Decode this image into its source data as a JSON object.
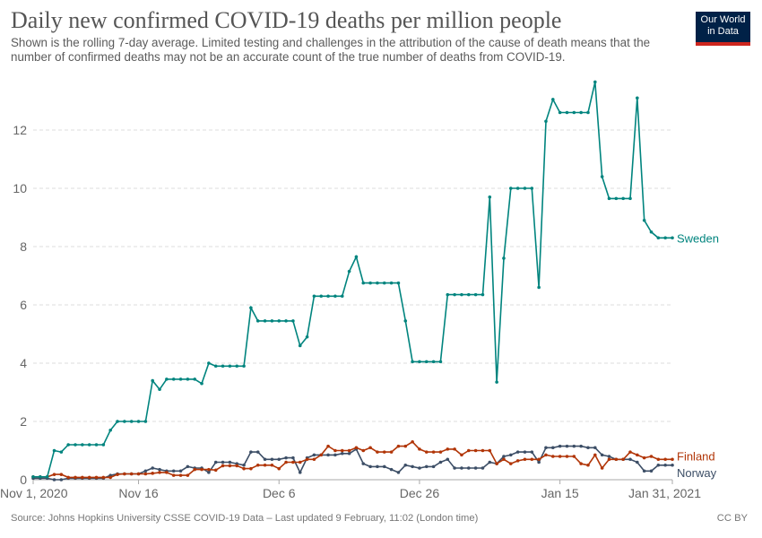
{
  "header": {
    "title": "Daily new confirmed COVID-19 deaths per million people",
    "subtitle": "Shown is the rolling 7-day average. Limited testing and challenges in the attribution of the cause of death means that the number of confirmed deaths may not be an accurate count of the true number of deaths from COVID-19.",
    "logo": "Our World in Data"
  },
  "footer": {
    "source": "Source: Johns Hopkins University CSSE COVID-19 Data – Last updated 9 February, 11:02 (London time)",
    "license": "CC BY"
  },
  "chart_data": {
    "type": "line",
    "title": "Daily new confirmed COVID-19 deaths per million people",
    "x_start": "2020-11-01",
    "x_end": "2021-01-31",
    "x_step": "1 day",
    "ylim": [
      0,
      13.9
    ],
    "grid": true,
    "y_ticks": [
      0,
      2,
      4,
      6,
      8,
      10,
      12
    ],
    "x_ticks": [
      {
        "label": "Nov 1, 2020",
        "date": "2020-11-01"
      },
      {
        "label": "Nov 16",
        "date": "2020-11-16"
      },
      {
        "label": "Dec 6",
        "date": "2020-12-06"
      },
      {
        "label": "Dec 26",
        "date": "2020-12-26"
      },
      {
        "label": "Jan 15",
        "date": "2021-01-15"
      },
      {
        "label": "Jan 31, 2021",
        "date": "2021-01-31"
      }
    ],
    "legend": "inline-right",
    "series": [
      {
        "name": "Sweden",
        "color": "#00847e",
        "values": [
          0.1,
          0.1,
          0.1,
          1.0,
          0.95,
          1.2,
          1.2,
          1.2,
          1.2,
          1.2,
          1.2,
          1.7,
          2.0,
          2.0,
          2.0,
          2.0,
          2.0,
          3.4,
          3.1,
          3.45,
          3.45,
          3.45,
          3.45,
          3.45,
          3.3,
          4.0,
          3.9,
          3.9,
          3.9,
          3.9,
          3.9,
          5.9,
          5.45,
          5.45,
          5.45,
          5.45,
          5.45,
          5.45,
          4.6,
          4.9,
          6.3,
          6.3,
          6.3,
          6.3,
          6.3,
          7.15,
          7.65,
          6.75,
          6.75,
          6.75,
          6.75,
          6.75,
          6.75,
          5.45,
          4.05,
          4.05,
          4.05,
          4.05,
          4.05,
          6.35,
          6.35,
          6.35,
          6.35,
          6.35,
          6.35,
          9.7,
          3.35,
          7.6,
          10.0,
          10.0,
          10.0,
          10.0,
          6.6,
          12.3,
          13.05,
          12.6,
          12.6,
          12.6,
          12.6,
          12.6,
          13.65,
          10.4,
          9.65,
          9.65,
          9.65,
          9.65,
          13.1,
          8.9,
          8.5,
          8.3,
          8.3,
          8.3
        ]
      },
      {
        "name": "Finland",
        "color": "#c15065",
        "values": [
          0.1,
          0.1,
          0.1,
          0.18,
          0.18,
          0.08,
          0.08,
          0.08,
          0.08,
          0.08,
          0.08,
          0.08,
          0.18,
          0.2,
          0.2,
          0.2,
          0.2,
          0.22,
          0.25,
          0.25,
          0.15,
          0.15,
          0.15,
          0.35,
          0.35,
          0.35,
          0.33,
          0.48,
          0.48,
          0.48,
          0.38,
          0.38,
          0.5,
          0.5,
          0.5,
          0.38,
          0.6,
          0.6,
          0.6,
          0.7,
          0.7,
          0.85,
          1.15,
          1.0,
          1.0,
          1.0,
          1.1,
          1.0,
          1.1,
          0.95,
          0.95,
          0.95,
          1.15,
          1.15,
          1.3,
          1.05,
          0.95,
          0.95,
          0.95,
          1.05,
          1.05,
          0.85,
          1.0,
          1.0,
          1.0,
          1.0,
          0.55,
          0.7,
          0.55,
          0.65,
          0.7,
          0.7,
          0.7,
          0.85,
          0.8,
          0.8,
          0.8,
          0.8,
          0.55,
          0.5,
          0.85,
          0.4,
          0.7,
          0.7,
          0.7,
          0.95,
          0.85,
          0.75,
          0.8,
          0.7,
          0.7,
          0.7
        ]
      },
      {
        "name": "Norway",
        "color": "#3c4e66",
        "values": [
          0.05,
          0.05,
          0.05,
          0.0,
          0.0,
          0.05,
          0.05,
          0.05,
          0.05,
          0.05,
          0.05,
          0.15,
          0.2,
          0.2,
          0.2,
          0.2,
          0.3,
          0.4,
          0.35,
          0.3,
          0.3,
          0.3,
          0.45,
          0.4,
          0.4,
          0.25,
          0.6,
          0.6,
          0.6,
          0.55,
          0.5,
          0.95,
          0.95,
          0.7,
          0.7,
          0.7,
          0.75,
          0.75,
          0.25,
          0.75,
          0.85,
          0.85,
          0.85,
          0.85,
          0.9,
          0.9,
          1.05,
          0.55,
          0.45,
          0.45,
          0.45,
          0.35,
          0.25,
          0.5,
          0.45,
          0.4,
          0.45,
          0.45,
          0.6,
          0.7,
          0.4,
          0.4,
          0.4,
          0.4,
          0.4,
          0.6,
          0.55,
          0.8,
          0.85,
          0.95,
          0.95,
          0.95,
          0.6,
          1.1,
          1.1,
          1.15,
          1.15,
          1.15,
          1.15,
          1.1,
          1.1,
          0.85,
          0.8,
          0.7,
          0.7,
          0.7,
          0.6,
          0.3,
          0.3,
          0.5,
          0.5,
          0.5
        ]
      }
    ]
  }
}
